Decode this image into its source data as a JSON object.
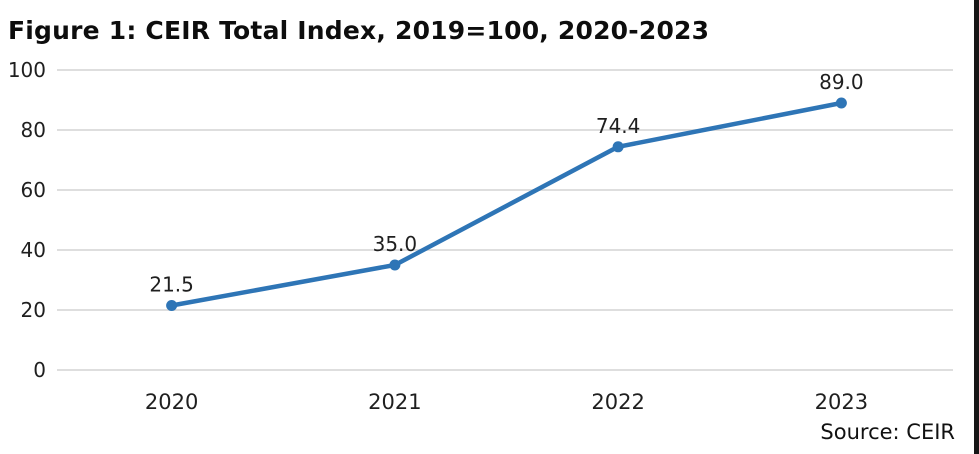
{
  "figure": {
    "source_note": "Source: CEIR"
  },
  "colors": {
    "line": "#2E75B6",
    "marker": "#2E75B6",
    "gridline": "#D9D9D9",
    "tick_text": "#1f1f1f",
    "label_text": "#111111",
    "border_bar": "#161616"
  },
  "chart_data": {
    "type": "line",
    "title": "Figure 1: CEIR Total Index, 2019=100, 2020-2023",
    "categories": [
      "2020",
      "2021",
      "2022",
      "2023"
    ],
    "values": [
      21.5,
      35.0,
      74.4,
      89.0
    ],
    "point_labels": [
      "21.5",
      "35.0",
      "74.4",
      "89.0"
    ],
    "y_ticks": [
      100,
      80,
      60,
      40,
      20,
      0
    ],
    "ylim": [
      0,
      100
    ],
    "xlabel": "",
    "ylabel": "",
    "grid": "horizontal",
    "legend": "none",
    "series_name": "CEIR Total Index"
  }
}
